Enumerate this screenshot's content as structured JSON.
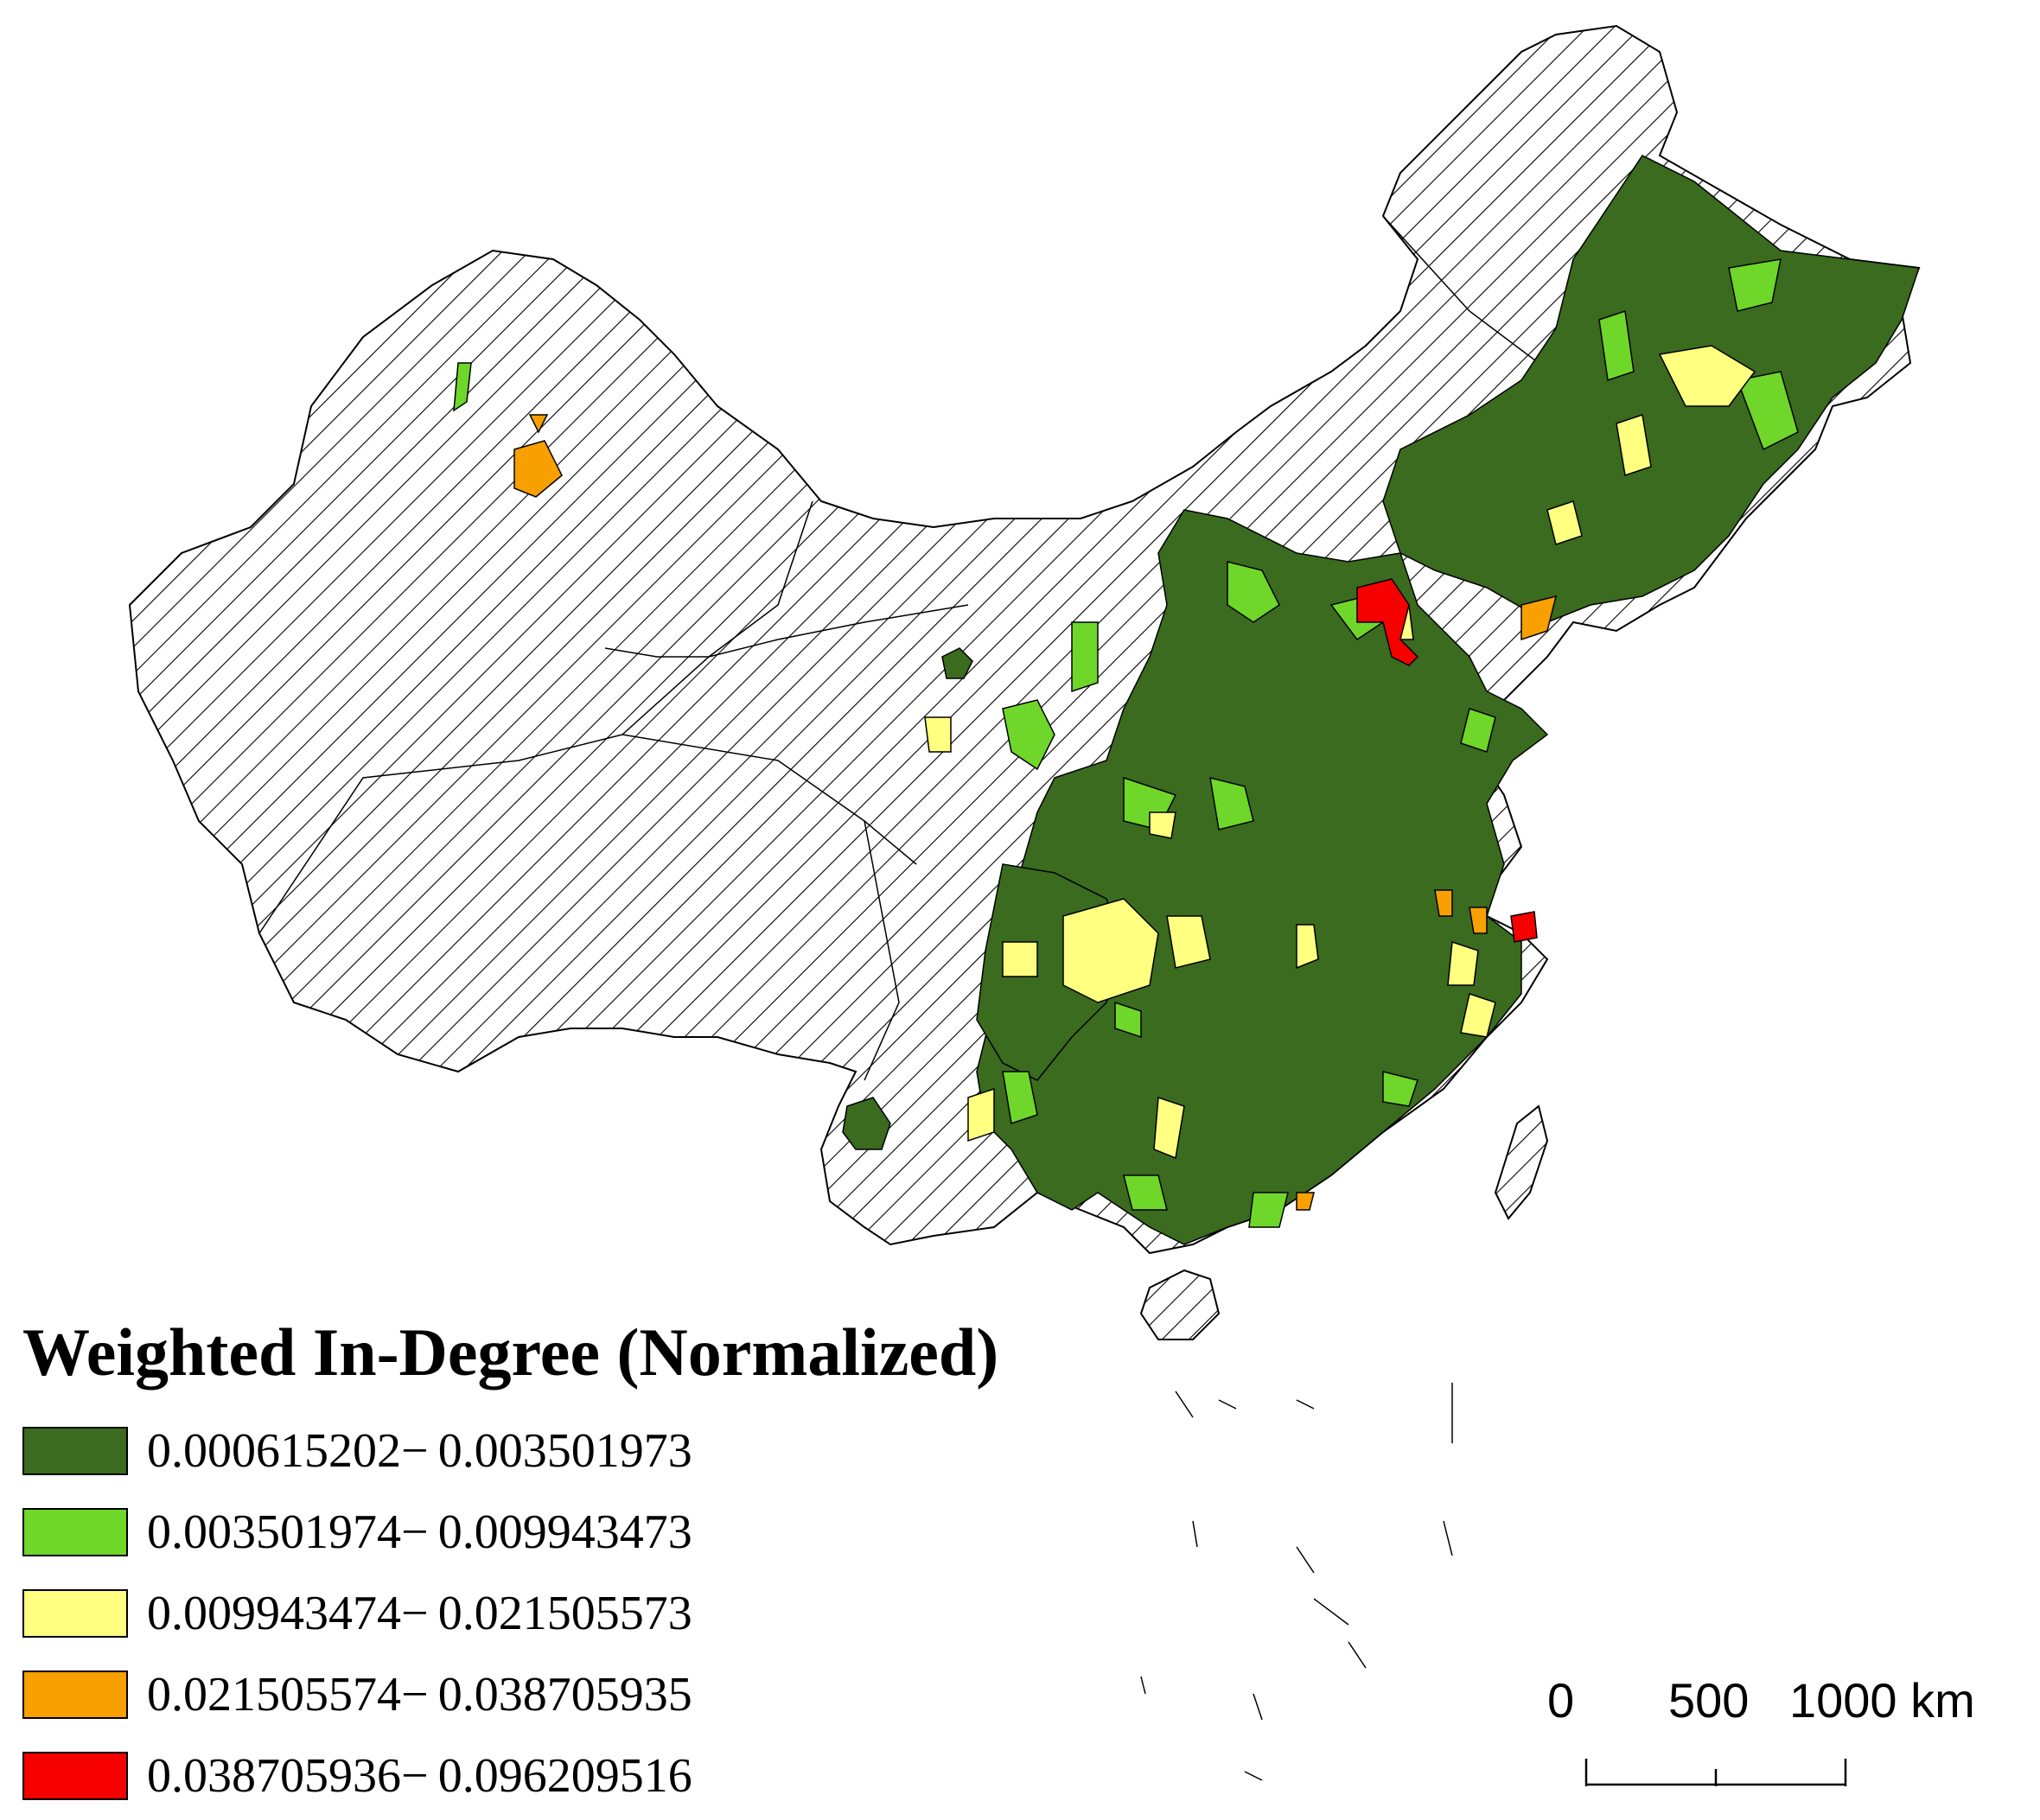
{
  "legend": {
    "title": "Weighted In-Degree (Normalized)",
    "classes": [
      {
        "label": "0.000615202− 0.003501973",
        "color": "#3a6b1e"
      },
      {
        "label": "0.003501974− 0.009943473",
        "color": "#6fd62a"
      },
      {
        "label": "0.009943474− 0.021505573",
        "color": "#ffff80"
      },
      {
        "label": "0.021505574− 0.038705935",
        "color": "#f7a000"
      },
      {
        "label": "0.038705936− 0.096209516",
        "color": "#f60000"
      }
    ],
    "no_data_pattern": "diagonal-hatch"
  },
  "scale_bar": {
    "labels": [
      "0",
      "500",
      "1000 km"
    ]
  }
}
